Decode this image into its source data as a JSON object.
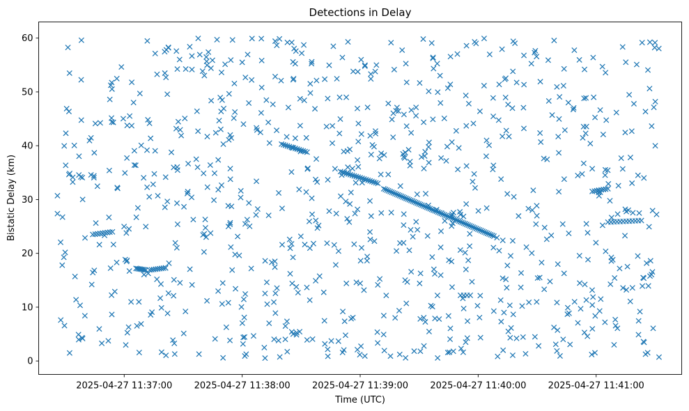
{
  "chart_data": {
    "type": "scatter",
    "title": "Detections in Delay",
    "xlabel": "Time (UTC)",
    "ylabel": "Bistatic Delay (km)",
    "marker": "x",
    "color": "#1f77b4",
    "x_unit": "seconds since 2025-04-27 11:36:00",
    "xlim": [
      -13.5,
      313.5
    ],
    "ylim": [
      -2.5,
      63
    ],
    "x_ticks": [
      {
        "value": 30,
        "label": "2025-04-27 11:37:00"
      },
      {
        "value": 90,
        "label": "2025-04-27 11:38:00"
      },
      {
        "value": 150,
        "label": "2025-04-27 11:39:00"
      },
      {
        "value": 210,
        "label": "2025-04-27 11:40:00"
      },
      {
        "value": 270,
        "label": "2025-04-27 11:41:00"
      }
    ],
    "y_ticks": [
      {
        "value": 0,
        "label": "0"
      },
      {
        "value": 10,
        "label": "10"
      },
      {
        "value": 20,
        "label": "20"
      },
      {
        "value": 30,
        "label": "30"
      },
      {
        "value": 40,
        "label": "40"
      },
      {
        "value": 50,
        "label": "50"
      },
      {
        "value": 60,
        "label": "60"
      }
    ],
    "tracks": [
      {
        "x_start": 14,
        "x_end": 24,
        "y_start": 23.5,
        "y_end": 24.0,
        "count": 9
      },
      {
        "x_start": 36,
        "x_end": 41,
        "y_start": 17.2,
        "y_end": 16.9,
        "count": 8
      },
      {
        "x_start": 43,
        "x_end": 51,
        "y_start": 16.9,
        "y_end": 17.3,
        "count": 9
      },
      {
        "x_start": 110,
        "x_end": 123,
        "y_start": 40.3,
        "y_end": 38.8,
        "count": 14
      },
      {
        "x_start": 140,
        "x_end": 159,
        "y_start": 35.2,
        "y_end": 33.0,
        "count": 20
      },
      {
        "x_start": 162,
        "x_end": 218,
        "y_start": 32.0,
        "y_end": 23.2,
        "count": 70
      },
      {
        "x_start": 201,
        "x_end": 206,
        "y_start": 12.2,
        "y_end": 12.2,
        "count": 4
      },
      {
        "x_start": 268,
        "x_end": 276,
        "y_start": 31.5,
        "y_end": 32.0,
        "count": 8
      },
      {
        "x_start": 276,
        "x_end": 293,
        "y_start": 25.8,
        "y_end": 26.1,
        "count": 12
      }
    ],
    "clutter": {
      "x_range": [
        -4,
        302
      ],
      "y_range": [
        0.5,
        60
      ],
      "count": 900,
      "seed": 12345
    }
  }
}
